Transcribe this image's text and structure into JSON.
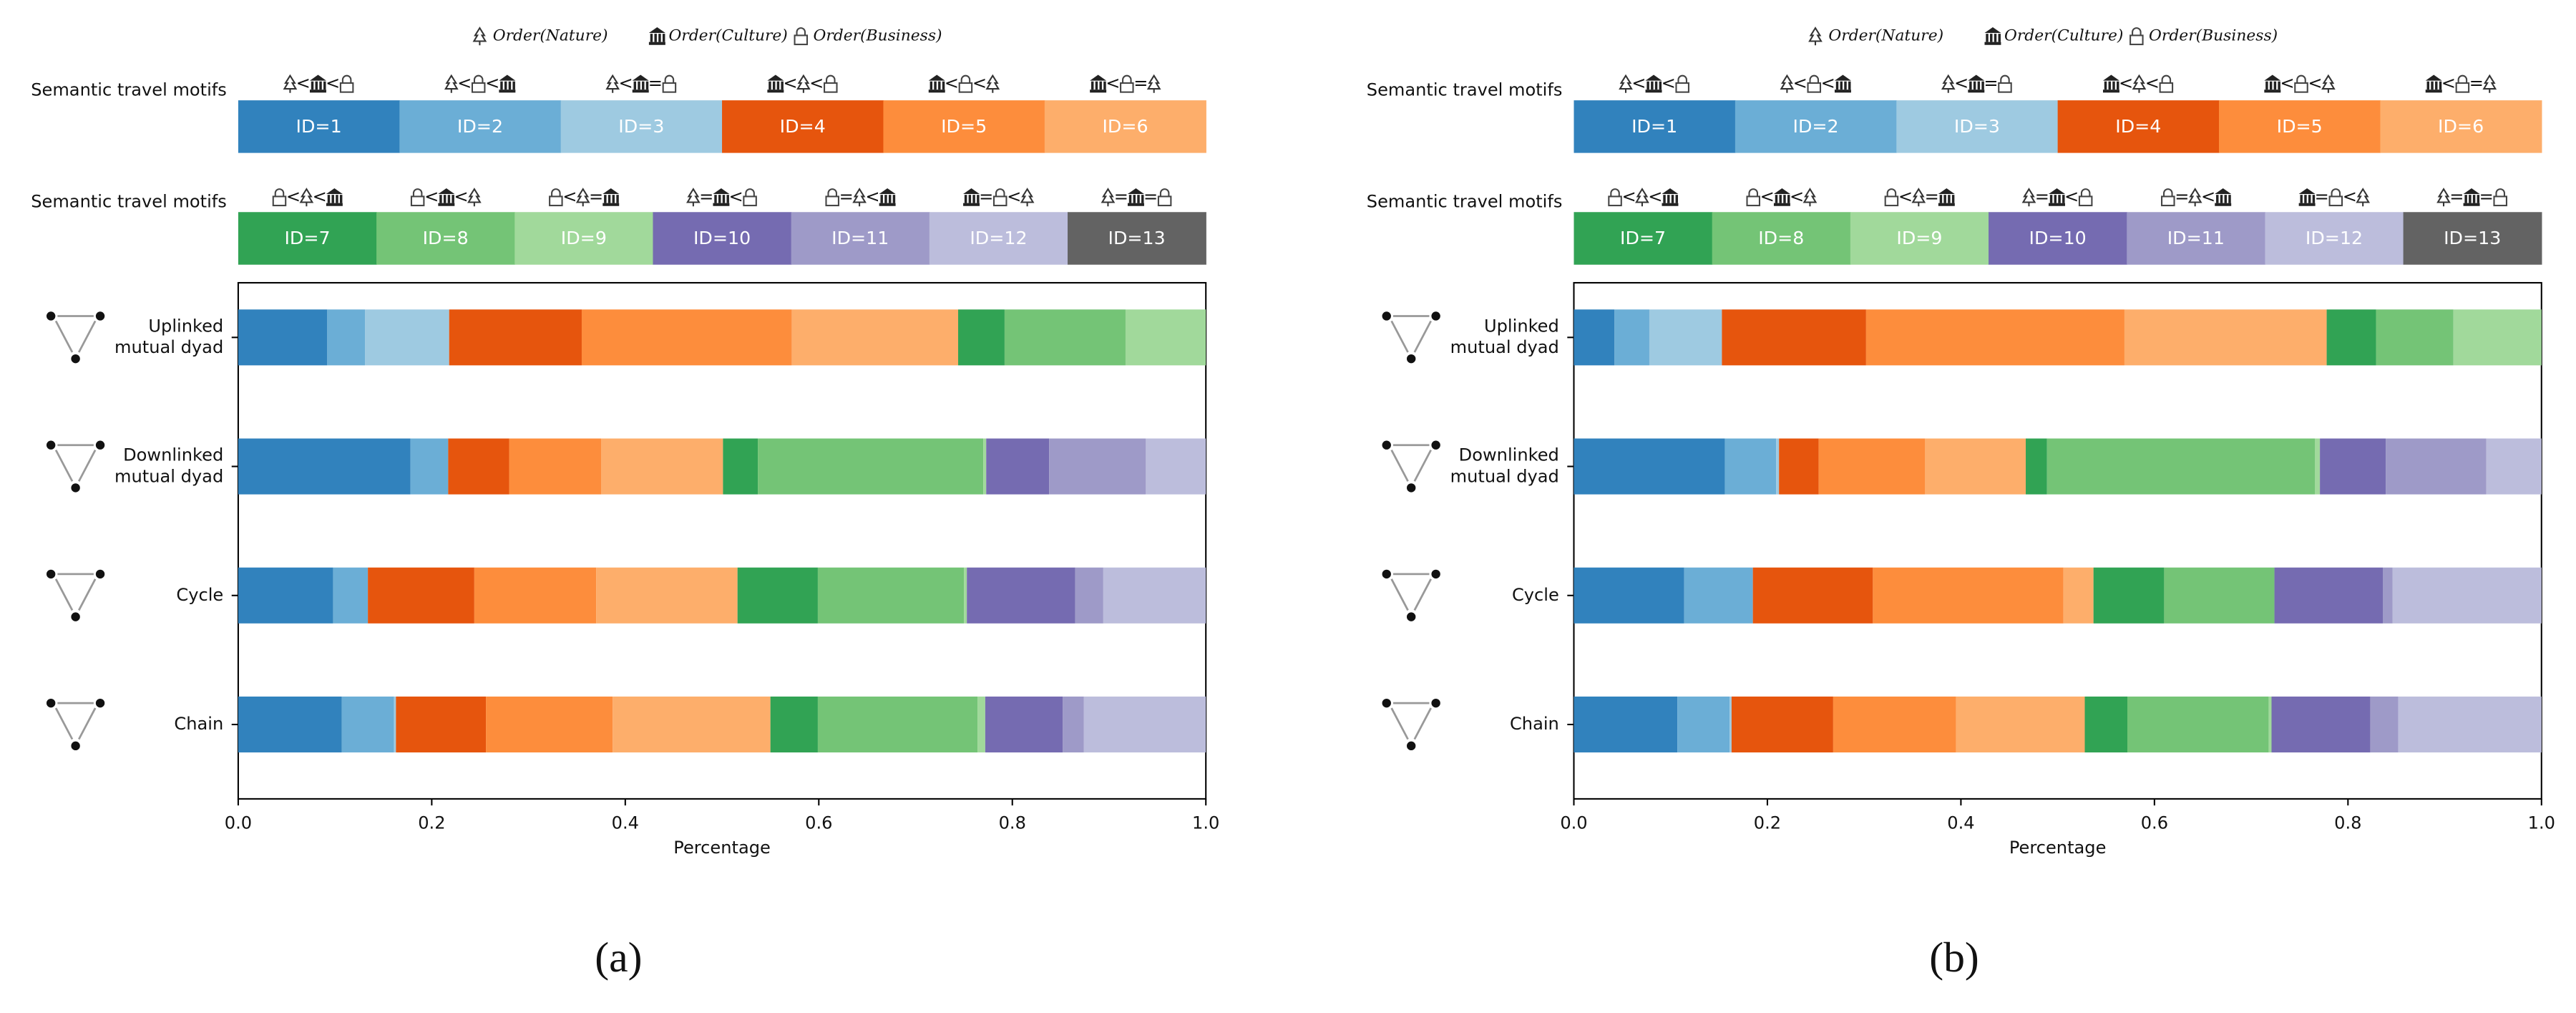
{
  "chart_data": [
    {
      "type": "bar",
      "orientation": "horizontal",
      "stacked": true,
      "caption": "(a)",
      "xlabel": "Percentage",
      "legend_title": "Semantic travel motifs",
      "icon_legend": [
        "Order(Nature)",
        "Order(Culture)",
        "Order(Business)"
      ],
      "categories": [
        [
          "Uplinked",
          "mutual dyad"
        ],
        [
          "Downlinked",
          "mutual dyad"
        ],
        [
          "Cycle"
        ],
        [
          "Chain"
        ]
      ],
      "xlim": [
        0,
        1
      ],
      "xticks": [
        {
          "value": 0,
          "label": "0.0"
        },
        0.2,
        0.4,
        0.6,
        0.8,
        {
          "value": 1,
          "label": "1.0"
        }
      ],
      "series": [
        {
          "name": "ID=1",
          "color": "#3182bd",
          "motif": [
            "Order(Nature)",
            "<",
            "Order(Culture)",
            "<",
            "Order(Business)"
          ],
          "values": [
            0.092,
            0.178,
            0.098,
            0.107
          ]
        },
        {
          "name": "ID=2",
          "color": "#6baed6",
          "motif": [
            "Order(Nature)",
            "<",
            "Order(Business)",
            "<",
            "Order(Culture)"
          ],
          "values": [
            0.039,
            0.039,
            0.036,
            0.054
          ]
        },
        {
          "name": "ID=3",
          "color": "#9ecae1",
          "motif": [
            "Order(Nature)",
            "<",
            "Order(Culture)",
            "=",
            "Order(Business)"
          ],
          "values": [
            0.087,
            0,
            0,
            0.002
          ]
        },
        {
          "name": "ID=4",
          "color": "#e6550d",
          "motif": [
            "Order(Culture)",
            "<",
            "Order(Nature)",
            "<",
            "Order(Business)"
          ],
          "values": [
            0.137,
            0.063,
            0.11,
            0.093
          ]
        },
        {
          "name": "ID=5",
          "color": "#fd8d3c",
          "motif": [
            "Order(Culture)",
            "<",
            "Order(Business)",
            "<",
            "Order(Nature)"
          ],
          "values": [
            0.217,
            0.095,
            0.126,
            0.131
          ]
        },
        {
          "name": "ID=6",
          "color": "#fdae6b",
          "motif": [
            "Order(Culture)",
            "<",
            "Order(Business)",
            "=",
            "Order(Nature)"
          ],
          "values": [
            0.172,
            0.126,
            0.146,
            0.163
          ]
        },
        {
          "name": "ID=7",
          "color": "#31a354",
          "motif": [
            "Order(Business)",
            "<",
            "Order(Nature)",
            "<",
            "Order(Culture)"
          ],
          "values": [
            0.048,
            0.036,
            0.083,
            0.049
          ]
        },
        {
          "name": "ID=8",
          "color": "#74c476",
          "motif": [
            "Order(Business)",
            "<",
            "Order(Culture)",
            "<",
            "Order(Nature)"
          ],
          "values": [
            0.125,
            0.233,
            0.151,
            0.165
          ]
        },
        {
          "name": "ID=9",
          "color": "#a1d99b",
          "motif": [
            "Order(Business)",
            "<",
            "Order(Nature)",
            "=",
            "Order(Culture)"
          ],
          "values": [
            0.083,
            0.003,
            0.003,
            0.008
          ]
        },
        {
          "name": "ID=10",
          "color": "#756bb1",
          "motif": [
            "Order(Nature)",
            "=",
            "Order(Culture)",
            "<",
            "Order(Business)"
          ],
          "values": [
            0,
            0.065,
            0.112,
            0.08
          ]
        },
        {
          "name": "ID=11",
          "color": "#9e9ac8",
          "motif": [
            "Order(Business)",
            "=",
            "Order(Nature)",
            "<",
            "Order(Culture)"
          ],
          "values": [
            0,
            0.1,
            0.029,
            0.022
          ]
        },
        {
          "name": "ID=12",
          "color": "#bcbddc",
          "motif": [
            "Order(Culture)",
            "=",
            "Order(Business)",
            "<",
            "Order(Nature)"
          ],
          "values": [
            0,
            0.062,
            0.106,
            0.126
          ]
        },
        {
          "name": "ID=13",
          "color": "#636363",
          "motif": [
            "Order(Nature)",
            "=",
            "Order(Culture)",
            "=",
            "Order(Business)"
          ],
          "values": [
            0,
            0,
            0,
            0
          ]
        }
      ]
    },
    {
      "type": "bar",
      "orientation": "horizontal",
      "stacked": true,
      "caption": "(b)",
      "xlabel": "Percentage",
      "legend_title": "Semantic travel motifs",
      "icon_legend": [
        "Order(Nature)",
        "Order(Culture)",
        "Order(Business)"
      ],
      "categories": [
        [
          "Uplinked",
          "mutual dyad"
        ],
        [
          "Downlinked",
          "mutual dyad"
        ],
        [
          "Cycle"
        ],
        [
          "Chain"
        ]
      ],
      "xlim": [
        0,
        1
      ],
      "xticks": [
        {
          "value": 0,
          "label": "0.0"
        },
        0.2,
        0.4,
        0.6,
        0.8,
        {
          "value": 1,
          "label": "1.0"
        }
      ],
      "series": [
        {
          "name": "ID=1",
          "color": "#3182bd",
          "motif": [
            "Order(Nature)",
            "<",
            "Order(Culture)",
            "<",
            "Order(Business)"
          ],
          "values": [
            0.042,
            0.156,
            0.114,
            0.107
          ]
        },
        {
          "name": "ID=2",
          "color": "#6baed6",
          "motif": [
            "Order(Nature)",
            "<",
            "Order(Business)",
            "<",
            "Order(Culture)"
          ],
          "values": [
            0.036,
            0.053,
            0.071,
            0.054
          ]
        },
        {
          "name": "ID=3",
          "color": "#9ecae1",
          "motif": [
            "Order(Nature)",
            "<",
            "Order(Culture)",
            "=",
            "Order(Business)"
          ],
          "values": [
            0.075,
            0.003,
            0,
            0.002
          ]
        },
        {
          "name": "ID=4",
          "color": "#e6550d",
          "motif": [
            "Order(Culture)",
            "<",
            "Order(Nature)",
            "<",
            "Order(Business)"
          ],
          "values": [
            0.149,
            0.041,
            0.124,
            0.105
          ]
        },
        {
          "name": "ID=5",
          "color": "#fd8d3c",
          "motif": [
            "Order(Culture)",
            "<",
            "Order(Business)",
            "<",
            "Order(Nature)"
          ],
          "values": [
            0.267,
            0.11,
            0.197,
            0.127
          ]
        },
        {
          "name": "ID=6",
          "color": "#fdae6b",
          "motif": [
            "Order(Culture)",
            "<",
            "Order(Business)",
            "=",
            "Order(Nature)"
          ],
          "values": [
            0.209,
            0.104,
            0.031,
            0.133
          ]
        },
        {
          "name": "ID=7",
          "color": "#31a354",
          "motif": [
            "Order(Business)",
            "<",
            "Order(Nature)",
            "<",
            "Order(Culture)"
          ],
          "values": [
            0.051,
            0.022,
            0.073,
            0.044
          ]
        },
        {
          "name": "ID=8",
          "color": "#74c476",
          "motif": [
            "Order(Business)",
            "<",
            "Order(Culture)",
            "<",
            "Order(Nature)"
          ],
          "values": [
            0.08,
            0.277,
            0.114,
            0.146
          ]
        },
        {
          "name": "ID=9",
          "color": "#a1d99b",
          "motif": [
            "Order(Business)",
            "<",
            "Order(Nature)",
            "=",
            "Order(Culture)"
          ],
          "values": [
            0.091,
            0.005,
            0,
            0.003
          ]
        },
        {
          "name": "ID=10",
          "color": "#756bb1",
          "motif": [
            "Order(Nature)",
            "=",
            "Order(Culture)",
            "<",
            "Order(Business)"
          ],
          "values": [
            0,
            0.068,
            0.112,
            0.102
          ]
        },
        {
          "name": "ID=11",
          "color": "#9e9ac8",
          "motif": [
            "Order(Business)",
            "=",
            "Order(Nature)",
            "<",
            "Order(Culture)"
          ],
          "values": [
            0,
            0.104,
            0.01,
            0.029
          ]
        },
        {
          "name": "ID=12",
          "color": "#bcbddc",
          "motif": [
            "Order(Culture)",
            "=",
            "Order(Business)",
            "<",
            "Order(Nature)"
          ],
          "values": [
            0,
            0.057,
            0.154,
            0.148
          ]
        },
        {
          "name": "ID=13",
          "color": "#636363",
          "motif": [
            "Order(Nature)",
            "=",
            "Order(Culture)",
            "=",
            "Order(Business)"
          ],
          "values": [
            0,
            0,
            0,
            0
          ]
        }
      ]
    }
  ]
}
